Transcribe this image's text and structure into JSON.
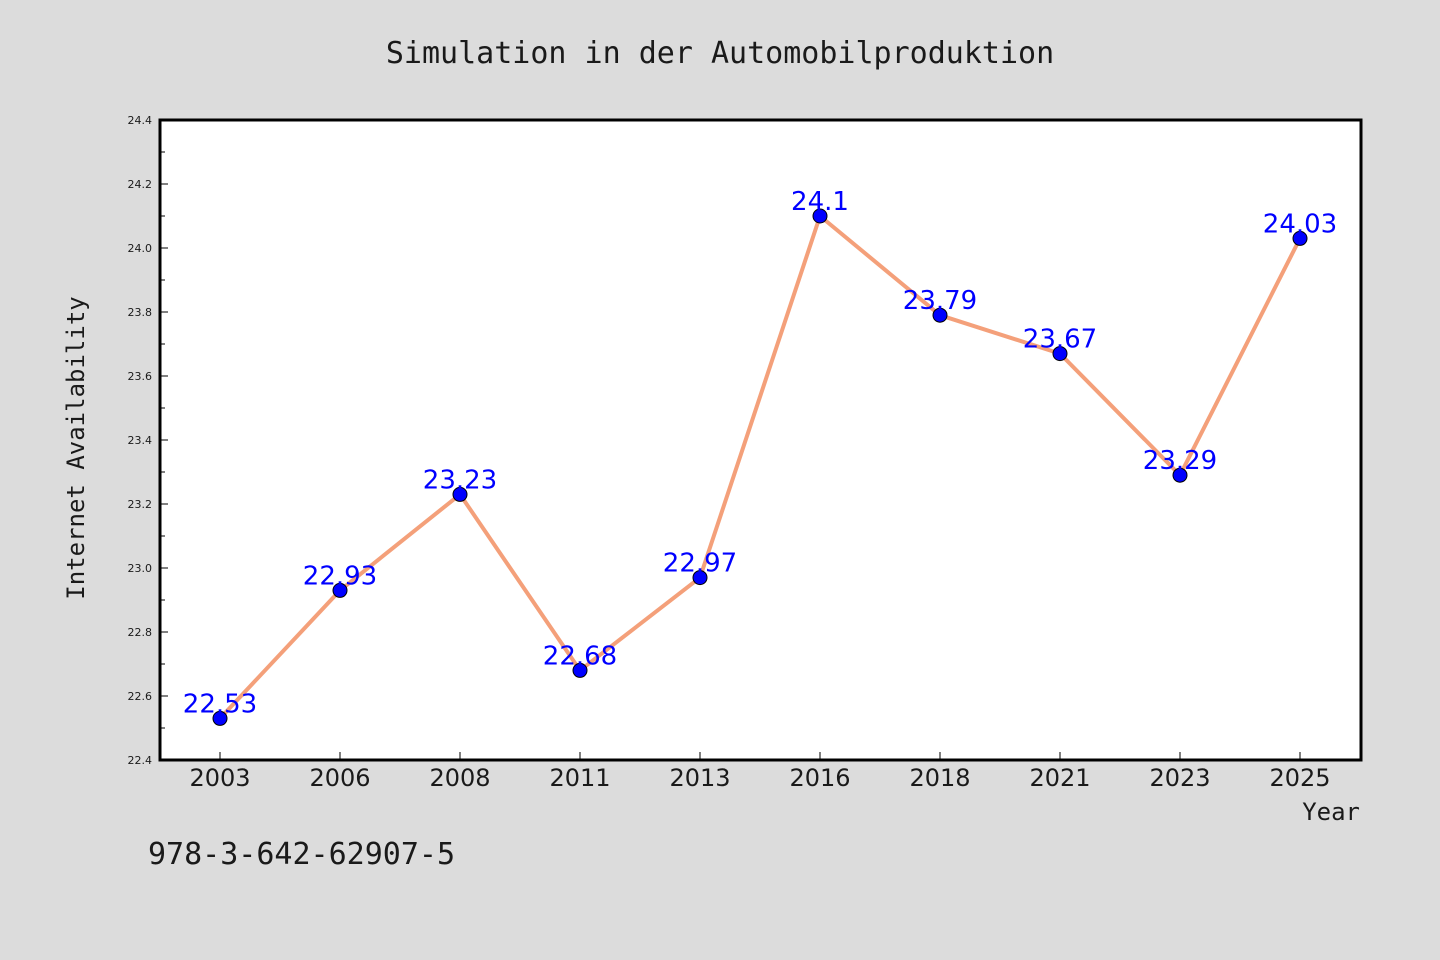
{
  "chart_data": {
    "type": "line",
    "title": "Simulation in der Automobilproduktion",
    "xlabel": "Year",
    "ylabel": "Internet Availability",
    "categories": [
      "2003",
      "2006",
      "2008",
      "2011",
      "2013",
      "2016",
      "2018",
      "2021",
      "2023",
      "2025"
    ],
    "series": [
      {
        "values": [
          22.53,
          22.93,
          23.23,
          22.68,
          22.97,
          24.1,
          23.79,
          23.67,
          23.29,
          24.03
        ],
        "data_labels": [
          "22.53",
          "22.93",
          "23.23",
          "22.68",
          "22.97",
          "24.1",
          "23.79",
          "23.67",
          "23.29",
          "24.03"
        ]
      }
    ],
    "ylim": [
      22.4,
      24.4
    ],
    "y_ticks": [
      "22.4",
      "22.6",
      "22.8",
      "23.0",
      "23.2",
      "23.4",
      "23.6",
      "23.8",
      "24.0",
      "24.2",
      "24.4"
    ],
    "grid": false,
    "legend": "none",
    "annotation": "978-3-642-62907-5",
    "colors": {
      "background": "#dcdcdc",
      "plot_background": "#ffffff",
      "line": "#f4a07a",
      "marker": "#0000ff",
      "data_label": "#0000ff",
      "text": "#1a1a1a"
    }
  }
}
